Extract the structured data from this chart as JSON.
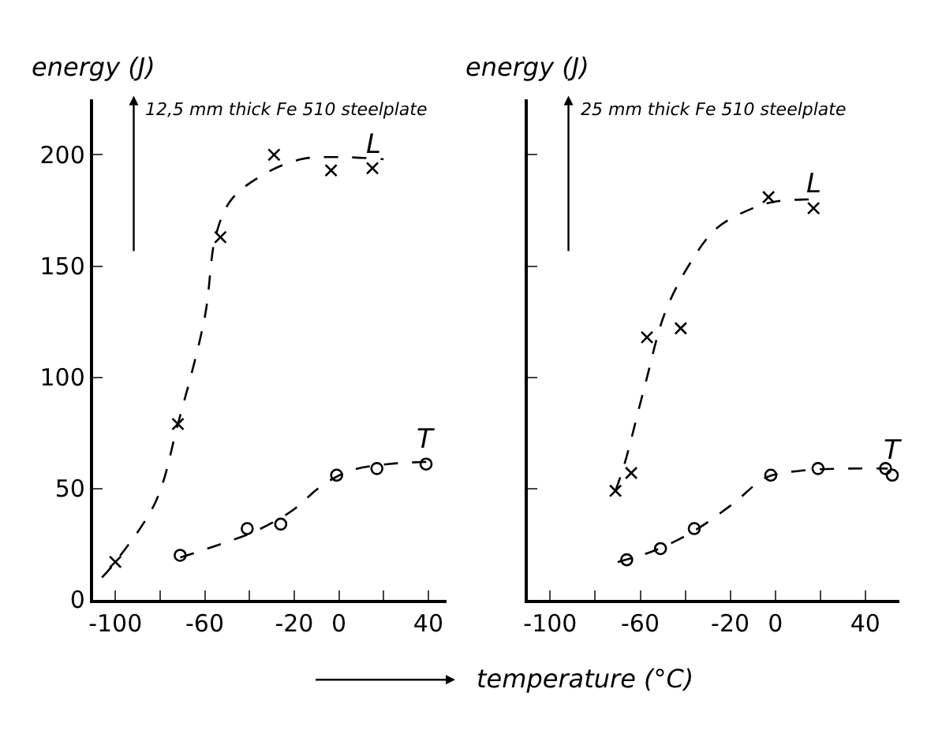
{
  "chart_data": [
    {
      "type": "scatter",
      "ylabel": "energy (J)",
      "xlabel": "temperature (°C)",
      "annotations": [
        "12,5 mm thick Fe 510 steelplate"
      ],
      "xlim": [
        -110,
        48
      ],
      "ylim": [
        0,
        225
      ],
      "xticks": [
        -100,
        {
          "value": -80,
          "label": null
        },
        -60,
        {
          "value": -40,
          "label": null
        },
        -20,
        0,
        {
          "value": 20,
          "label": null
        },
        40
      ],
      "yticks": [
        0,
        50,
        100,
        150,
        200
      ],
      "grid": false,
      "legend": false,
      "series": [
        {
          "name": "L",
          "marker": "cross",
          "color": "#000000",
          "x": [
            -100,
            -72,
            -53,
            -29,
            -3.5,
            15
          ],
          "values": [
            17,
            79,
            163,
            200,
            193,
            194
          ]
        },
        {
          "type": "line",
          "line_style": "dashed",
          "marker": "none",
          "color": "#000000",
          "x": [
            -106,
            -100,
            -82,
            -72,
            -60,
            -55,
            -48,
            -34,
            -17,
            0,
            20
          ],
          "values": [
            10,
            17,
            44,
            79,
            127,
            164,
            180,
            191,
            198,
            199,
            198
          ]
        },
        {
          "name": "T",
          "marker": "circle",
          "color": "#000000",
          "x": [
            -71,
            -41,
            -26,
            -1,
            17,
            39
          ],
          "values": [
            20,
            32,
            34,
            56,
            59,
            61
          ]
        },
        {
          "type": "line",
          "line_style": "dashed",
          "marker": "none",
          "color": "#000000",
          "x": [
            -71,
            -50,
            -37,
            -21,
            -8,
            5,
            22,
            40
          ],
          "values": [
            19,
            26,
            31,
            40,
            51,
            58,
            61,
            62
          ]
        }
      ]
    },
    {
      "type": "scatter",
      "ylabel": "energy (J)",
      "annotations": [
        "25 mm thick Fe 510 steelplate"
      ],
      "xlim": [
        -110,
        55
      ],
      "ylim": [
        0,
        225
      ],
      "xticks": [
        -100,
        {
          "value": -80,
          "label": null
        },
        -60,
        {
          "value": -40,
          "label": null
        },
        -20,
        0,
        {
          "value": 20,
          "label": null
        },
        40
      ],
      "yticks": [
        0,
        50,
        100,
        150,
        200
      ],
      "tick_labels": "x",
      "grid": false,
      "legend": false,
      "series": [
        {
          "name": "L",
          "marker": "cross",
          "color": "#000000",
          "x": [
            -71,
            -64,
            -57,
            -42,
            -3,
            17
          ],
          "values": [
            49,
            57,
            118,
            122,
            181,
            176
          ]
        },
        {
          "type": "line",
          "line_style": "dashed",
          "marker": "none",
          "color": "#000000",
          "x": [
            -71,
            -67,
            -58,
            -49,
            -38,
            -26,
            -10,
            0,
            17
          ],
          "values": [
            49,
            61,
            96,
            129,
            151,
            167,
            176,
            179,
            180
          ]
        },
        {
          "name": "T",
          "marker": "circle",
          "color": "#000000",
          "x": [
            -66,
            -51,
            -36,
            -2,
            19,
            49,
            52
          ],
          "values": [
            18,
            23,
            32,
            56,
            59,
            59,
            56
          ]
        },
        {
          "type": "line",
          "line_style": "dashed",
          "marker": "none",
          "color": "#000000",
          "x": [
            -70,
            -54,
            -36,
            -19,
            -4,
            11,
            33,
            50
          ],
          "values": [
            17,
            22,
            31,
            43,
            55,
            58,
            59,
            59
          ]
        }
      ]
    }
  ]
}
